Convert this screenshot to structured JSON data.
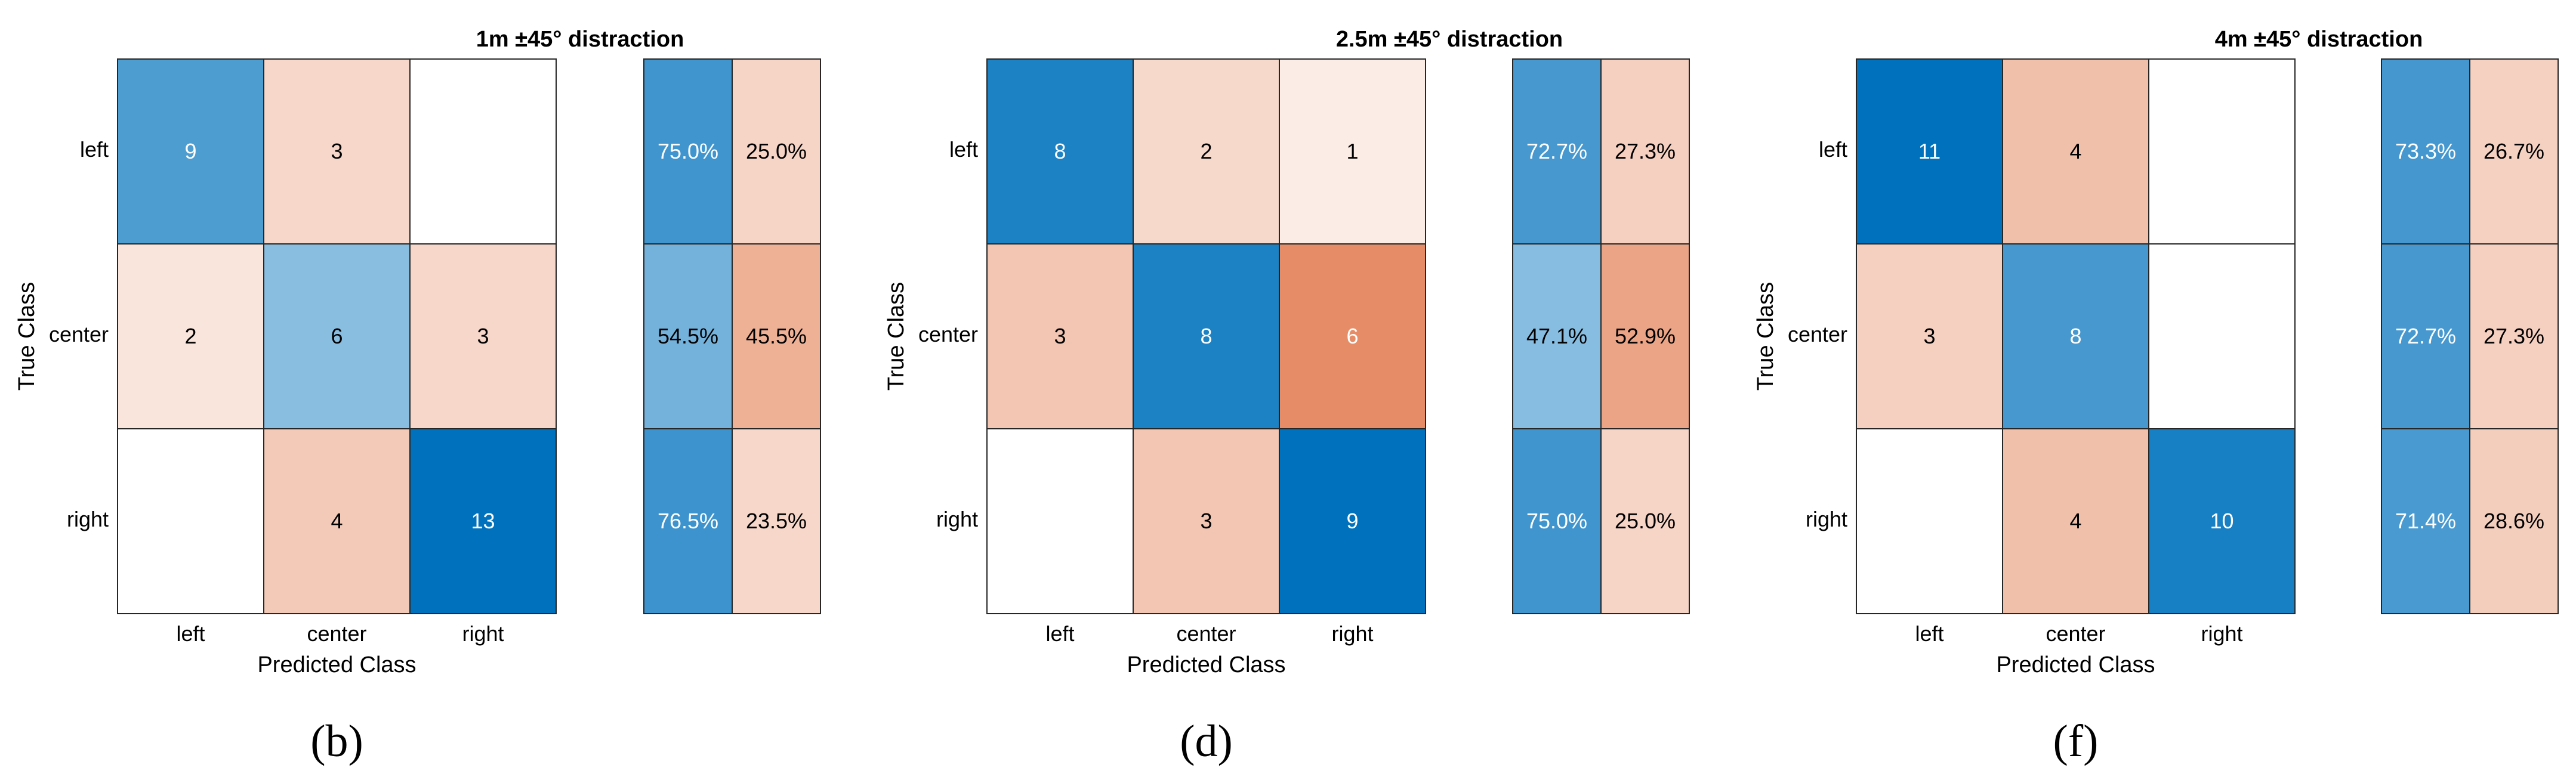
{
  "figure": {
    "panel_labels": [
      "(b)",
      "(d)",
      "(f)"
    ]
  },
  "colors": {
    "blue_max": "#0072BD",
    "orange_max": "#D95319",
    "light": "#FFFFFF",
    "grid": "#262626",
    "text_dark": "#000000",
    "text_light": "#FFFFFF"
  },
  "chart_data": [
    {
      "type": "heatmap",
      "title": "1m ±45° distraction",
      "xlabel": "Predicted Class",
      "ylabel": "True Class",
      "classes": [
        "left",
        "center",
        "right"
      ],
      "matrix": [
        [
          9,
          3,
          0
        ],
        [
          2,
          6,
          3
        ],
        [
          0,
          4,
          13
        ]
      ],
      "row_summary": [
        {
          "correct": "75.0%",
          "incorrect": "25.0%"
        },
        {
          "correct": "54.5%",
          "incorrect": "45.5%"
        },
        {
          "correct": "76.5%",
          "incorrect": "23.5%"
        }
      ]
    },
    {
      "type": "heatmap",
      "title": "2.5m ±45° distraction",
      "xlabel": "Predicted Class",
      "ylabel": "True Class",
      "classes": [
        "left",
        "center",
        "right"
      ],
      "matrix": [
        [
          8,
          2,
          1
        ],
        [
          3,
          8,
          6
        ],
        [
          0,
          3,
          9
        ]
      ],
      "row_summary": [
        {
          "correct": "72.7%",
          "incorrect": "27.3%"
        },
        {
          "correct": "47.1%",
          "incorrect": "52.9%"
        },
        {
          "correct": "75.0%",
          "incorrect": "25.0%"
        }
      ]
    },
    {
      "type": "heatmap",
      "title": "4m ±45° distraction",
      "xlabel": "Predicted Class",
      "ylabel": "True Class",
      "classes": [
        "left",
        "center",
        "right"
      ],
      "matrix": [
        [
          11,
          4,
          0
        ],
        [
          3,
          8,
          0
        ],
        [
          0,
          4,
          10
        ]
      ],
      "row_summary": [
        {
          "correct": "73.3%",
          "incorrect": "26.7%"
        },
        {
          "correct": "72.7%",
          "incorrect": "27.3%"
        },
        {
          "correct": "71.4%",
          "incorrect": "28.6%"
        }
      ]
    }
  ]
}
